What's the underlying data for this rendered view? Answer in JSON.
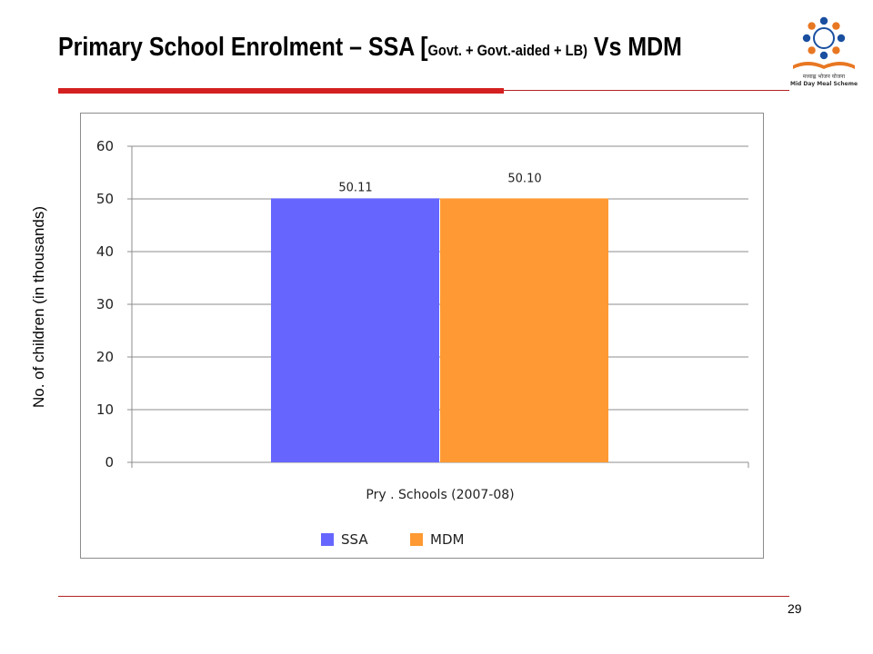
{
  "slide": {
    "title_main": "Primary School Enrolment – SSA [",
    "title_detail": "Govt. + Govt.-aided + LB)",
    "title_tail": " Vs MDM",
    "logo_text_line1": "मध्याह्न भोजन योजना",
    "logo_text_line2": "Mid Day Meal Scheme",
    "page_number": "29"
  },
  "colors": {
    "accent_red": "#d42020",
    "ssa": "#6666ff",
    "mdm": "#ff9933"
  },
  "chart_data": {
    "type": "bar",
    "title": "",
    "categories": [
      "Pry . Schools (2007-08)"
    ],
    "series": [
      {
        "name": "SSA",
        "values": [
          50.11
        ],
        "label": "50.11",
        "color": "#6666ff"
      },
      {
        "name": "MDM",
        "values": [
          50.1
        ],
        "label": "50.10",
        "color": "#ff9933"
      }
    ],
    "xlabel": "",
    "ylabel": "No. of children (in thousands)",
    "ylim": [
      0,
      60
    ],
    "yticks": [
      0,
      10,
      20,
      30,
      40,
      50,
      60
    ],
    "grid": true,
    "legend": "bottom"
  }
}
